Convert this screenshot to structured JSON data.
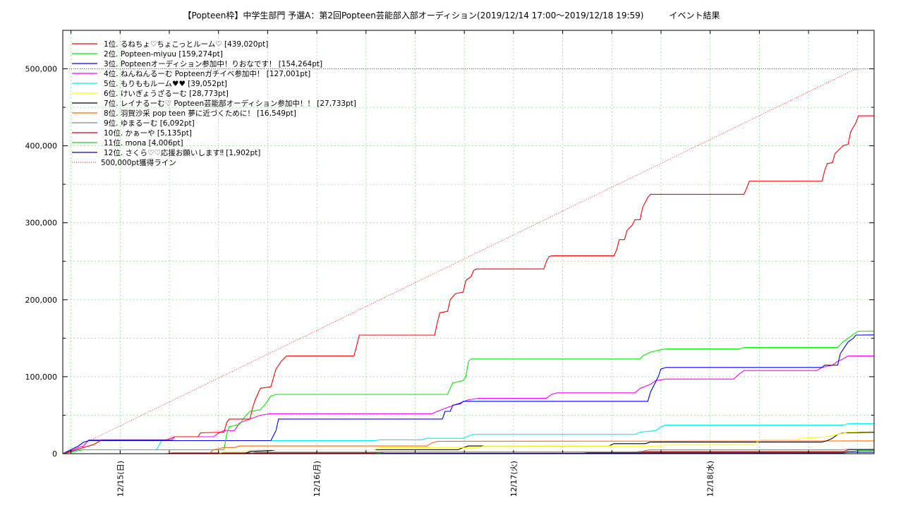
{
  "chart_data": {
    "type": "line",
    "title": "【Popteen枠】中学生部門 予選A：第2回Popteen芸能部入部オーディション(2019/12/14 17:00〜2019/12/18 19:59)　　　イベント結果",
    "xlabel": "",
    "ylabel": "",
    "x_range": [
      "2019/12/14 17:00",
      "2019/12/18 19:59"
    ],
    "ylim": [
      0,
      550000
    ],
    "y_ticks": [
      "0",
      "100,000",
      "200,000",
      "300,000",
      "400,000",
      "500,000"
    ],
    "x_ticks": [
      "12/15(日)",
      "12/16(月)",
      "12/17(火)",
      "12/18(水)"
    ],
    "grid": true,
    "legend_position": "top-left",
    "target_line": {
      "name": "500,000pt獲得ライン",
      "value": 500000,
      "color": "#ff0000",
      "style": "dotted"
    },
    "series": [
      {
        "name": "1位. るねちょ♡ちょこっとルーム♡ [439,020pt]",
        "color": "#ff0000",
        "points": [
          [
            0,
            0
          ],
          [
            4,
            8000
          ],
          [
            6,
            12000
          ],
          [
            7.5,
            18000
          ],
          [
            20,
            18000
          ],
          [
            21.5,
            22000
          ],
          [
            26,
            22000
          ],
          [
            26.5,
            27000
          ],
          [
            31,
            28000
          ],
          [
            31.5,
            40000
          ],
          [
            32,
            45000
          ],
          [
            36,
            45000
          ],
          [
            36.5,
            60000
          ],
          [
            37,
            70000
          ],
          [
            38,
            85000
          ],
          [
            40,
            87000
          ],
          [
            41,
            110000
          ],
          [
            42,
            120000
          ],
          [
            43,
            127000
          ],
          [
            56,
            127000
          ],
          [
            56.5,
            140000
          ],
          [
            57,
            154000
          ],
          [
            71.5,
            154000
          ],
          [
            72,
            170000
          ],
          [
            72.5,
            183000
          ],
          [
            74,
            185000
          ],
          [
            74.5,
            200000
          ],
          [
            75.5,
            208000
          ],
          [
            77,
            210000
          ],
          [
            77.5,
            225000
          ],
          [
            78.5,
            230000
          ],
          [
            79,
            238000
          ],
          [
            79.5,
            240000
          ],
          [
            92.5,
            240000
          ],
          [
            93,
            250000
          ],
          [
            93.5,
            256000
          ],
          [
            94,
            257000
          ],
          [
            106,
            257000
          ],
          [
            106.5,
            265000
          ],
          [
            107,
            278000
          ],
          [
            108,
            278000
          ],
          [
            108.5,
            290000
          ],
          [
            109.5,
            297000
          ],
          [
            110,
            304000
          ],
          [
            111,
            304000
          ],
          [
            111.5,
            320000
          ],
          [
            112.5,
            333000
          ],
          [
            113,
            337000
          ],
          [
            131,
            337000
          ],
          [
            131.5,
            345000
          ],
          [
            132,
            354000
          ],
          [
            146,
            354000
          ],
          [
            146.5,
            368000
          ],
          [
            147,
            377000
          ],
          [
            148,
            378000
          ],
          [
            148.5,
            390000
          ],
          [
            150,
            400000
          ],
          [
            151,
            402000
          ],
          [
            151.5,
            418000
          ],
          [
            152.5,
            430000
          ],
          [
            153,
            439000
          ],
          [
            156,
            439020
          ]
        ]
      },
      {
        "name": "2位. Popteen-miyuu [159,274pt]",
        "color": "#00ee00",
        "points": [
          [
            0,
            0
          ],
          [
            4,
            5000
          ],
          [
            31,
            5000
          ],
          [
            31.5,
            25000
          ],
          [
            32,
            35000
          ],
          [
            34,
            38000
          ],
          [
            35,
            48000
          ],
          [
            36,
            55000
          ],
          [
            38,
            57000
          ],
          [
            39,
            65000
          ],
          [
            40,
            75000
          ],
          [
            41,
            77000
          ],
          [
            74,
            77000
          ],
          [
            74.5,
            85000
          ],
          [
            75,
            92000
          ],
          [
            77,
            95000
          ],
          [
            77.5,
            100000
          ],
          [
            78,
            120000
          ],
          [
            78.5,
            123000
          ],
          [
            111,
            123000
          ],
          [
            111.5,
            127000
          ],
          [
            113,
            132000
          ],
          [
            115,
            135000
          ],
          [
            116,
            136000
          ],
          [
            130,
            136000
          ],
          [
            131,
            138000
          ],
          [
            149,
            138000
          ],
          [
            150,
            145000
          ],
          [
            151,
            150000
          ],
          [
            152,
            155000
          ],
          [
            153,
            159000
          ],
          [
            156,
            159274
          ]
        ]
      },
      {
        "name": "3位. Popteenオーディション参加中！りおなです！ [154,264pt]",
        "color": "#0000ff",
        "points": [
          [
            0,
            0
          ],
          [
            3,
            10000
          ],
          [
            4,
            15000
          ],
          [
            5,
            17000
          ],
          [
            40,
            17000
          ],
          [
            41,
            30000
          ],
          [
            41.5,
            45000
          ],
          [
            73,
            45000
          ],
          [
            73.5,
            55000
          ],
          [
            74.5,
            55000
          ],
          [
            75,
            63000
          ],
          [
            76.5,
            65000
          ],
          [
            77,
            68000
          ],
          [
            112.5,
            68000
          ],
          [
            113,
            80000
          ],
          [
            114.5,
            100000
          ],
          [
            115,
            110000
          ],
          [
            116,
            112000
          ],
          [
            146,
            112000
          ],
          [
            146.5,
            115000
          ],
          [
            149,
            115000
          ],
          [
            149.5,
            130000
          ],
          [
            150,
            135000
          ],
          [
            151,
            145000
          ],
          [
            152,
            150000
          ],
          [
            152.5,
            154000
          ],
          [
            156,
            154264
          ]
        ]
      },
      {
        "name": "4位. ねんねんるーむ Popteenガチイベ参加中！ [127,001pt]",
        "color": "#ff00ff",
        "points": [
          [
            0,
            0
          ],
          [
            2,
            5000
          ],
          [
            3,
            8000
          ],
          [
            4,
            10000
          ],
          [
            5,
            18000
          ],
          [
            21,
            18000
          ],
          [
            21.5,
            22000
          ],
          [
            29,
            22000
          ],
          [
            30,
            27000
          ],
          [
            31,
            30000
          ],
          [
            33,
            30000
          ],
          [
            34,
            40000
          ],
          [
            36,
            45000
          ],
          [
            38,
            50000
          ],
          [
            40,
            52000
          ],
          [
            71,
            52000
          ],
          [
            72,
            55000
          ],
          [
            74,
            60000
          ],
          [
            76,
            65000
          ],
          [
            78,
            70000
          ],
          [
            80,
            72000
          ],
          [
            93,
            72000
          ],
          [
            94,
            77000
          ],
          [
            95,
            79000
          ],
          [
            110,
            79000
          ],
          [
            111,
            85000
          ],
          [
            113,
            90000
          ],
          [
            114,
            95000
          ],
          [
            116,
            97000
          ],
          [
            129,
            97000
          ],
          [
            130,
            103000
          ],
          [
            131,
            108000
          ],
          [
            145,
            108000
          ],
          [
            146,
            112000
          ],
          [
            148,
            115000
          ],
          [
            149,
            120000
          ],
          [
            150,
            123000
          ],
          [
            151,
            127000
          ],
          [
            156,
            127001
          ]
        ]
      },
      {
        "name": "5位. もりももルーム♥♥ [39,052pt]",
        "color": "#00eeee",
        "points": [
          [
            0,
            0
          ],
          [
            3,
            5000
          ],
          [
            4,
            5000
          ],
          [
            18,
            5000
          ],
          [
            19,
            17000
          ],
          [
            60,
            17000
          ],
          [
            61,
            18000
          ],
          [
            69,
            18000
          ],
          [
            70,
            20000
          ],
          [
            77,
            20000
          ],
          [
            78,
            23000
          ],
          [
            79,
            25000
          ],
          [
            110,
            25000
          ],
          [
            111,
            28000
          ],
          [
            114,
            30000
          ],
          [
            115,
            35000
          ],
          [
            116,
            37000
          ],
          [
            150,
            37000
          ],
          [
            151,
            39000
          ],
          [
            156,
            39052
          ]
        ]
      },
      {
        "name": "6位. けいぎょうざるーむ [28,773pt]",
        "color": "#ffff00",
        "points": [
          [
            0,
            0
          ],
          [
            30,
            0
          ],
          [
            31,
            3000
          ],
          [
            35,
            3000
          ],
          [
            36,
            5000
          ],
          [
            60,
            5000
          ],
          [
            61,
            8000
          ],
          [
            80,
            8000
          ],
          [
            81,
            10000
          ],
          [
            115,
            10000
          ],
          [
            116,
            12000
          ],
          [
            133,
            12000
          ],
          [
            134,
            18000
          ],
          [
            141,
            18000
          ],
          [
            142,
            20000
          ],
          [
            147,
            22000
          ],
          [
            149,
            25000
          ],
          [
            151,
            28000
          ],
          [
            156,
            28773
          ]
        ]
      },
      {
        "name": "7位. レイナるーむ♡ Popteen芸能部オーディション参加中！！ [27,733pt]",
        "color": "#000000",
        "points": [
          [
            0,
            0
          ],
          [
            35,
            0
          ],
          [
            36,
            3000
          ],
          [
            40,
            4000
          ],
          [
            41,
            5000
          ],
          [
            76,
            5000
          ],
          [
            77,
            8000
          ],
          [
            78,
            10000
          ],
          [
            105,
            10000
          ],
          [
            106,
            13000
          ],
          [
            112,
            13000
          ],
          [
            113,
            15000
          ],
          [
            146,
            15000
          ],
          [
            147,
            17000
          ],
          [
            148,
            20000
          ],
          [
            149,
            25000
          ],
          [
            150,
            27000
          ],
          [
            156,
            27733
          ]
        ]
      },
      {
        "name": "8位. 羽賀沙采 pop teen 夢に近づくために！ [16,549pt]",
        "color": "#ff6600",
        "points": [
          [
            0,
            0
          ],
          [
            28,
            0
          ],
          [
            29,
            5000
          ],
          [
            31,
            8000
          ],
          [
            33,
            8000
          ],
          [
            34,
            10000
          ],
          [
            70,
            10000
          ],
          [
            71,
            14000
          ],
          [
            72,
            16000
          ],
          [
            156,
            16549
          ]
        ]
      },
      {
        "name": "9位. ゆまるーむ [6,092pt]",
        "color": "#888888",
        "points": [
          [
            0,
            0
          ],
          [
            36,
            0
          ],
          [
            37,
            2000
          ],
          [
            111,
            2000
          ],
          [
            112,
            4000
          ],
          [
            113,
            5000
          ],
          [
            150,
            5000
          ],
          [
            151,
            6000
          ],
          [
            156,
            6092
          ]
        ]
      },
      {
        "name": "10位. かぁーや [5,135pt]",
        "color": "#dd0000",
        "points": [
          [
            0,
            0
          ],
          [
            20,
            0
          ],
          [
            21,
            1000
          ],
          [
            60,
            1000
          ],
          [
            61,
            2000
          ],
          [
            150,
            2000
          ],
          [
            151,
            5000
          ],
          [
            156,
            5135
          ]
        ]
      },
      {
        "name": "11位. mona [4,006pt]",
        "color": "#22cc22",
        "points": [
          [
            0,
            0
          ],
          [
            30,
            0
          ],
          [
            31,
            1000
          ],
          [
            61,
            1000
          ],
          [
            62,
            2000
          ],
          [
            110,
            2000
          ],
          [
            111,
            3000
          ],
          [
            152,
            3000
          ],
          [
            153,
            4000
          ],
          [
            156,
            4006
          ]
        ]
      },
      {
        "name": "12位. さくら♡♡応援お願いします‼ [1,902pt]",
        "color": "#0000aa",
        "points": [
          [
            0,
            0
          ],
          [
            45,
            0
          ],
          [
            46,
            500
          ],
          [
            100,
            500
          ],
          [
            101,
            1000
          ],
          [
            150,
            1000
          ],
          [
            151,
            1902
          ],
          [
            156,
            1902
          ]
        ]
      }
    ]
  }
}
